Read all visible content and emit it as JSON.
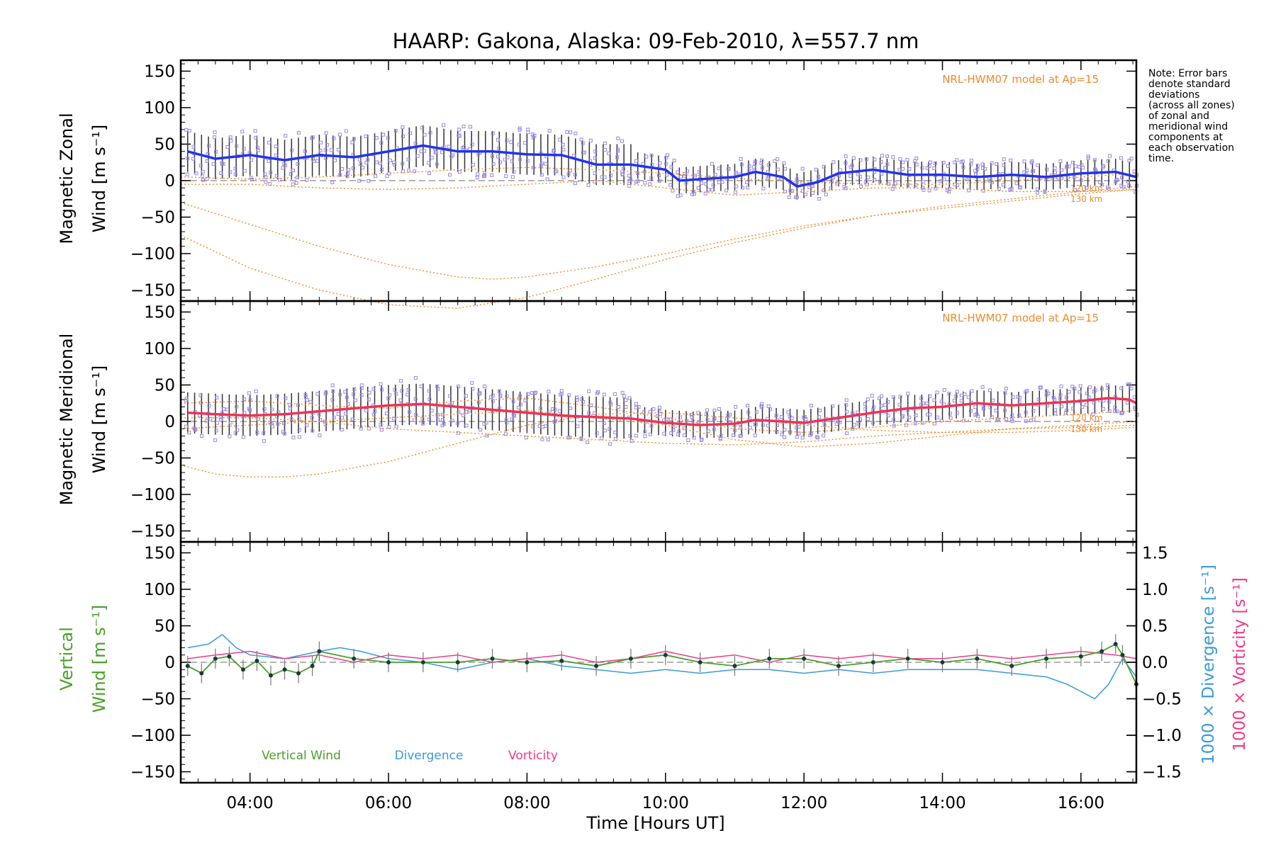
{
  "figure": {
    "title": "HAARP: Gakona,  Alaska: 09-Feb-2010, λ=557.7 nm",
    "note": [
      "Note: Error bars",
      "denote standard",
      "deviations",
      "(across all zones)",
      "of zonal and",
      "meridional wind",
      "components at",
      "each observation",
      "time."
    ],
    "colors": {
      "zonal": "#2233ee",
      "meridional": "#ee3355",
      "model": "#f08a2a",
      "vertical": "#4aa02a",
      "divergence": "#3a9ad8",
      "vorticity": "#ee3a88",
      "scatter": "#9988dd",
      "errorbar": "#333333"
    }
  },
  "chart_data": [
    {
      "type": "line",
      "ylabel_line1": "Magnetic Zonal",
      "ylabel_line2": "Wind [m s⁻¹]",
      "ylim": [
        -165,
        165
      ],
      "yticks": [
        -150,
        -100,
        -50,
        0,
        50,
        100,
        150
      ],
      "model_label": "NRL-HWM07 model at Ap=15",
      "model_curve_labels": [
        "120 km",
        "130 km"
      ],
      "series": [
        {
          "role": "measured",
          "x": [
            3.1,
            3.5,
            4.0,
            4.5,
            5.0,
            5.5,
            6.0,
            6.5,
            7.0,
            7.5,
            8.0,
            8.5,
            9.0,
            9.5,
            10.0,
            10.2,
            10.5,
            11.0,
            11.3,
            11.7,
            11.9,
            12.2,
            12.5,
            13.0,
            13.5,
            14.0,
            14.5,
            15.0,
            15.5,
            16.0,
            16.5,
            16.8
          ],
          "values": [
            40,
            30,
            35,
            28,
            35,
            32,
            40,
            48,
            40,
            40,
            36,
            35,
            22,
            22,
            15,
            0,
            2,
            5,
            12,
            5,
            -8,
            -2,
            10,
            15,
            8,
            8,
            5,
            8,
            5,
            10,
            12,
            5
          ]
        },
        {
          "role": "model-upper",
          "x": [
            3.0,
            4.0,
            5.0,
            6.0,
            7.0,
            8.0,
            9.0,
            10.0,
            11.0,
            12.0,
            13.0,
            14.0,
            15.0,
            16.0,
            16.8
          ],
          "values": [
            5,
            2,
            5,
            10,
            15,
            18,
            15,
            10,
            3,
            -2,
            -5,
            -5,
            0,
            5,
            10
          ]
        },
        {
          "role": "model-lower",
          "x": [
            3.0,
            4.0,
            5.0,
            6.0,
            7.0,
            8.0,
            9.0,
            10.0,
            11.0,
            12.0,
            13.0,
            14.0,
            15.0,
            16.0,
            16.8
          ],
          "values": [
            -5,
            -5,
            -10,
            -12,
            -10,
            -5,
            0,
            -10,
            -20,
            -15,
            -10,
            -10,
            -15,
            -15,
            -12
          ]
        },
        {
          "role": "model-120km",
          "x": [
            3.0,
            4.0,
            5.0,
            6.0,
            7.0,
            7.5,
            8.0,
            9.0,
            10.0,
            11.0,
            12.0,
            13.0,
            14.0,
            15.0,
            16.0,
            16.8
          ],
          "values": [
            -30,
            -60,
            -90,
            -115,
            -132,
            -135,
            -132,
            -118,
            -100,
            -80,
            -62,
            -48,
            -38,
            -28,
            -18,
            -12
          ]
        },
        {
          "role": "model-130km",
          "x": [
            3.0,
            4.0,
            5.0,
            6.0,
            7.0,
            8.0,
            9.0,
            10.0,
            11.0,
            12.0,
            13.0,
            14.0,
            15.0,
            16.0,
            16.8
          ],
          "values": [
            -75,
            -120,
            -150,
            -170,
            -175,
            -160,
            -135,
            -108,
            -85,
            -65,
            -48,
            -35,
            -25,
            -15,
            -8
          ]
        }
      ]
    },
    {
      "type": "line",
      "ylabel_line1": "Magnetic Meridional",
      "ylabel_line2": "Wind [m s⁻¹]",
      "ylim": [
        -165,
        165
      ],
      "yticks": [
        -150,
        -100,
        -50,
        0,
        50,
        100,
        150
      ],
      "model_label": "NRL-HWM07 model at Ap=15",
      "model_curve_labels": [
        "120 km",
        "130 km"
      ],
      "series": [
        {
          "role": "measured",
          "x": [
            3.1,
            3.5,
            4.0,
            4.5,
            5.0,
            5.5,
            6.0,
            6.5,
            7.0,
            7.5,
            8.0,
            8.5,
            9.0,
            9.5,
            10.0,
            10.5,
            11.0,
            11.3,
            11.7,
            12.0,
            12.5,
            13.0,
            13.5,
            14.0,
            14.5,
            15.0,
            15.5,
            16.0,
            16.4,
            16.7,
            16.8
          ],
          "values": [
            12,
            10,
            8,
            10,
            14,
            18,
            22,
            24,
            20,
            16,
            12,
            8,
            6,
            4,
            -2,
            -5,
            -3,
            2,
            0,
            -2,
            5,
            12,
            18,
            20,
            25,
            22,
            25,
            28,
            32,
            30,
            25
          ]
        },
        {
          "role": "model-upper",
          "x": [
            3.0,
            4.0,
            5.0,
            6.0,
            7.0,
            8.0,
            9.0,
            10.0,
            11.0,
            12.0,
            13.0,
            14.0,
            15.0,
            16.0,
            16.8
          ],
          "values": [
            25,
            28,
            22,
            18,
            28,
            32,
            20,
            5,
            -10,
            -15,
            -8,
            0,
            5,
            10,
            15
          ]
        },
        {
          "role": "model-lower",
          "x": [
            3.0,
            4.0,
            5.0,
            6.0,
            7.0,
            8.0,
            9.0,
            10.0,
            11.0,
            12.0,
            13.0,
            14.0,
            15.0,
            16.0,
            16.8
          ],
          "values": [
            -10,
            -5,
            0,
            5,
            10,
            15,
            5,
            -5,
            -25,
            -35,
            -30,
            -20,
            -10,
            -5,
            0
          ]
        },
        {
          "role": "model-120km",
          "x": [
            3.0,
            4.0,
            5.0,
            6.0,
            7.0,
            8.0,
            9.0,
            10.0,
            11.0,
            12.0,
            13.0,
            14.0,
            15.0,
            16.0,
            16.8
          ],
          "values": [
            5,
            5,
            0,
            -10,
            -15,
            -20,
            -25,
            -30,
            -32,
            -28,
            -20,
            -15,
            -10,
            -8,
            -5
          ]
        },
        {
          "role": "model-130km",
          "x": [
            3.0,
            3.5,
            4.0,
            4.5,
            5.0,
            6.0,
            7.0,
            8.0,
            9.0,
            10.0,
            11.0,
            12.0,
            13.0,
            14.0,
            15.0,
            16.0,
            16.8
          ],
          "values": [
            -60,
            -72,
            -76,
            -76,
            -72,
            -55,
            -30,
            -5,
            10,
            12,
            5,
            -5,
            -12,
            -15,
            -15,
            -12,
            -8
          ]
        }
      ]
    },
    {
      "type": "line",
      "ylabel_line1": "Vertical",
      "ylabel_line2": "Wind [m s⁻¹]",
      "ylim": [
        -165,
        165
      ],
      "yticks": [
        -150,
        -100,
        -50,
        0,
        50,
        100,
        150
      ],
      "xlabel": "Time [Hours UT]",
      "xlim": [
        3.0,
        16.8
      ],
      "xticks": [
        4,
        6,
        8,
        10,
        12,
        14,
        16
      ],
      "xtick_labels": [
        "04:00",
        "06:00",
        "08:00",
        "10:00",
        "12:00",
        "14:00",
        "16:00"
      ],
      "right_axis": {
        "ylim": [
          -1.65,
          1.65
        ],
        "yticks": [
          -1.5,
          -1.0,
          -0.5,
          0.0,
          0.5,
          1.0,
          1.5
        ],
        "ytick_labels": [
          "−1.5",
          "−1.0",
          "−0.5",
          "0.0",
          "0.5",
          "1.0",
          "1.5"
        ],
        "label_divergence": "1000 × Divergence [s⁻¹]",
        "label_vorticity": "1000 × Vorticity [s⁻¹]"
      },
      "legend": [
        "Vertical Wind",
        "Divergence",
        "Vorticity"
      ],
      "legend_position": "bottom-left",
      "series": [
        {
          "name": "Vertical Wind",
          "axis": "left",
          "x": [
            3.1,
            3.3,
            3.5,
            3.7,
            3.9,
            4.1,
            4.3,
            4.5,
            4.7,
            4.9,
            5.0,
            5.5,
            6.0,
            6.5,
            7.0,
            7.5,
            8.0,
            8.5,
            9.0,
            9.5,
            10.0,
            10.5,
            11.0,
            11.5,
            12.0,
            12.5,
            13.0,
            13.5,
            14.0,
            14.5,
            15.0,
            15.5,
            16.0,
            16.3,
            16.5,
            16.6,
            16.8
          ],
          "values": [
            -5,
            -15,
            5,
            8,
            -10,
            2,
            -18,
            -10,
            -15,
            -5,
            15,
            5,
            0,
            0,
            0,
            5,
            0,
            2,
            -5,
            5,
            10,
            0,
            -5,
            5,
            5,
            -5,
            0,
            5,
            0,
            5,
            -5,
            5,
            8,
            15,
            25,
            10,
            -30
          ]
        },
        {
          "name": "Divergence",
          "axis": "right",
          "x": [
            3.1,
            3.4,
            3.6,
            3.8,
            4.0,
            4.5,
            5.0,
            5.3,
            5.6,
            6.0,
            6.5,
            7.0,
            7.5,
            8.0,
            8.5,
            9.0,
            9.5,
            10.0,
            10.5,
            11.0,
            11.5,
            12.0,
            12.5,
            13.0,
            13.5,
            14.0,
            14.5,
            15.0,
            15.5,
            15.8,
            16.0,
            16.2,
            16.4,
            16.6,
            16.8
          ],
          "values": [
            0.2,
            0.25,
            0.38,
            0.2,
            0.1,
            0.05,
            0.15,
            0.2,
            0.15,
            0.05,
            0.0,
            -0.1,
            0.0,
            0.05,
            -0.05,
            -0.1,
            -0.15,
            -0.1,
            -0.15,
            -0.1,
            -0.1,
            -0.15,
            -0.1,
            -0.15,
            -0.1,
            -0.1,
            -0.1,
            -0.15,
            -0.2,
            -0.3,
            -0.4,
            -0.5,
            -0.3,
            0.05,
            -0.2
          ]
        },
        {
          "name": "Vorticity",
          "axis": "right",
          "x": [
            3.1,
            3.5,
            4.0,
            4.5,
            5.0,
            5.5,
            6.0,
            6.5,
            7.0,
            7.5,
            8.0,
            8.5,
            9.0,
            9.5,
            10.0,
            10.5,
            11.0,
            11.5,
            12.0,
            12.5,
            13.0,
            13.5,
            14.0,
            14.5,
            15.0,
            15.5,
            16.0,
            16.5,
            16.8
          ],
          "values": [
            0.05,
            0.1,
            0.15,
            0.05,
            0.1,
            0.0,
            0.1,
            0.05,
            0.1,
            0.0,
            0.05,
            0.1,
            0.0,
            0.05,
            0.15,
            0.05,
            0.1,
            0.0,
            0.1,
            0.05,
            0.1,
            0.05,
            0.05,
            0.1,
            0.05,
            0.1,
            0.15,
            0.1,
            0.05
          ]
        }
      ]
    }
  ]
}
